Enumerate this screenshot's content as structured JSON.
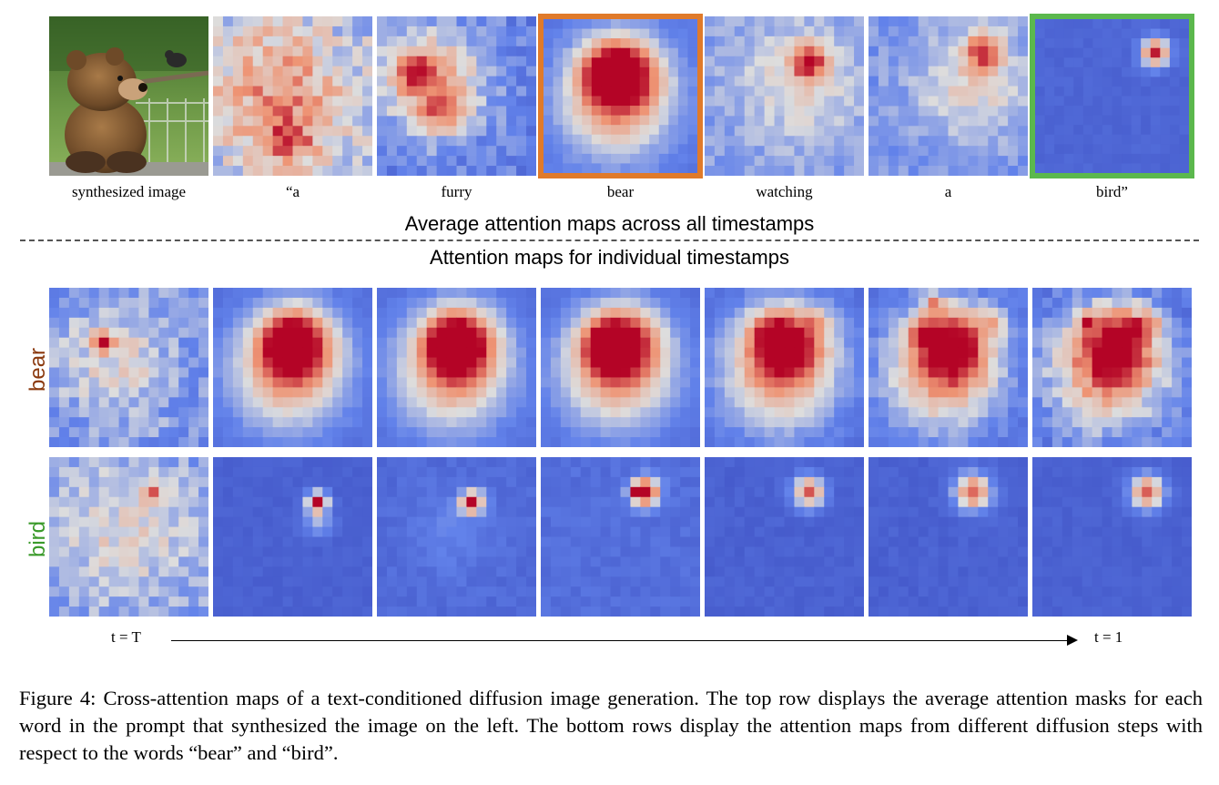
{
  "top_row": {
    "words": [
      "synthesized image",
      "“a",
      "furry",
      "bear",
      "watching",
      "a",
      "bird”"
    ],
    "highlight_colors": {
      "bear": "#e07a2a",
      "bird": "#5bb84d"
    }
  },
  "headings": {
    "average": "Average attention maps across all timestamps",
    "individual": "Attention maps for individual  timestamps"
  },
  "rows": {
    "bear_label": "bear",
    "bird_label": "bird",
    "bear_color": "#8b3a0f",
    "bird_color": "#3a9a2a"
  },
  "time_axis": {
    "start": "t = T",
    "end": "t = 1"
  },
  "caption": "Figure 4: Cross-attention maps of a text-conditioned diffusion image generation. The top row displays the average attention masks for each word in the prompt that synthesized the image on the left. The bottom rows display the attention maps from different diffusion steps with respect to the words “bear” and “bird”.",
  "icons": {
    "bear_photo": "photo-of-teddy-bear-and-bird-icon"
  }
}
